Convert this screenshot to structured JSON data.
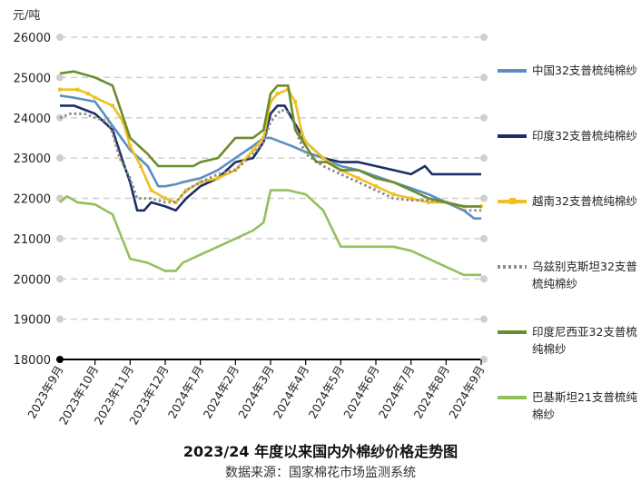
{
  "chart_data": {
    "type": "line",
    "title": "2023/24 年度以来国内外棉纱价格走势图",
    "source": "数据来源：国家棉花市场监测系统",
    "unit": "元/吨",
    "ylim": [
      18000,
      26000
    ],
    "yticks": [
      "18000",
      "19000",
      "20000",
      "21000",
      "22000",
      "23000",
      "24000",
      "25000",
      "26000"
    ],
    "categories": [
      "2023年9月",
      "2023年10月",
      "2023年11月",
      "2023年12月",
      "2024年1月",
      "2024年2月",
      "2024年3月",
      "2024年4月",
      "2024年5月",
      "2024年6月",
      "2024年7月",
      "2024年8月",
      "2024年9月"
    ],
    "grid": true,
    "legend_position": "right",
    "series": [
      {
        "name": "中国32支普梳纯棉纱",
        "color": "#5b8ec4",
        "dash": "solid",
        "values": [
          [
            0,
            24550
          ],
          [
            0.4,
            24500
          ],
          [
            1,
            24400
          ],
          [
            1.5,
            23800
          ],
          [
            2,
            23200
          ],
          [
            2.5,
            22800
          ],
          [
            2.8,
            22300
          ],
          [
            3,
            22300
          ],
          [
            3.3,
            22350
          ],
          [
            3.5,
            22400
          ],
          [
            4,
            22500
          ],
          [
            4.5,
            22700
          ],
          [
            5,
            23000
          ],
          [
            5.5,
            23300
          ],
          [
            5.8,
            23500
          ],
          [
            6,
            23500
          ],
          [
            6.3,
            23400
          ],
          [
            6.6,
            23300
          ],
          [
            7,
            23150
          ],
          [
            7.5,
            23000
          ],
          [
            8,
            22800
          ],
          [
            8.5,
            22700
          ],
          [
            9,
            22550
          ],
          [
            9.5,
            22400
          ],
          [
            10,
            22250
          ],
          [
            10.5,
            22100
          ],
          [
            11,
            21900
          ],
          [
            11.5,
            21700
          ],
          [
            11.8,
            21500
          ],
          [
            12,
            21500
          ]
        ]
      },
      {
        "name": "印度32支普梳纯棉纱",
        "color": "#1a2f66",
        "dash": "solid",
        "values": [
          [
            0,
            24300
          ],
          [
            0.4,
            24300
          ],
          [
            1,
            24100
          ],
          [
            1.5,
            23700
          ],
          [
            1.8,
            22900
          ],
          [
            2,
            22400
          ],
          [
            2.2,
            21700
          ],
          [
            2.4,
            21700
          ],
          [
            2.6,
            21900
          ],
          [
            3,
            21800
          ],
          [
            3.3,
            21700
          ],
          [
            3.6,
            22000
          ],
          [
            4,
            22300
          ],
          [
            4.5,
            22500
          ],
          [
            5,
            22900
          ],
          [
            5.5,
            23000
          ],
          [
            5.8,
            23400
          ],
          [
            6,
            24100
          ],
          [
            6.2,
            24300
          ],
          [
            6.4,
            24300
          ],
          [
            6.6,
            24000
          ],
          [
            6.8,
            23700
          ],
          [
            7,
            23400
          ],
          [
            7.5,
            23000
          ],
          [
            8,
            22900
          ],
          [
            8.5,
            22900
          ],
          [
            9,
            22800
          ],
          [
            9.5,
            22700
          ],
          [
            10,
            22600
          ],
          [
            10.4,
            22800
          ],
          [
            10.6,
            22600
          ],
          [
            11,
            22600
          ],
          [
            11.5,
            22600
          ],
          [
            12,
            22600
          ]
        ]
      },
      {
        "name": "越南32支普梳纯棉纱",
        "color": "#f0c020",
        "dash": "solid",
        "marker": "square",
        "values": [
          [
            0,
            24700
          ],
          [
            0.5,
            24700
          ],
          [
            0.8,
            24600
          ],
          [
            1,
            24500
          ],
          [
            1.5,
            24300
          ],
          [
            1.8,
            23900
          ],
          [
            2,
            23300
          ],
          [
            2.3,
            22800
          ],
          [
            2.6,
            22200
          ],
          [
            3,
            22000
          ],
          [
            3.3,
            21900
          ],
          [
            3.6,
            22200
          ],
          [
            4,
            22400
          ],
          [
            4.5,
            22500
          ],
          [
            5,
            22700
          ],
          [
            5.5,
            23200
          ],
          [
            5.8,
            23500
          ],
          [
            6,
            24400
          ],
          [
            6.2,
            24600
          ],
          [
            6.5,
            24700
          ],
          [
            6.7,
            24400
          ],
          [
            6.9,
            23600
          ],
          [
            7,
            23400
          ],
          [
            7.5,
            23000
          ],
          [
            8,
            22700
          ],
          [
            8.5,
            22500
          ],
          [
            9,
            22300
          ],
          [
            9.5,
            22100
          ],
          [
            10,
            22000
          ],
          [
            10.5,
            21900
          ],
          [
            11,
            21900
          ],
          [
            11.5,
            21800
          ],
          [
            12,
            21800
          ]
        ]
      },
      {
        "name": "乌兹别克斯坦32支普梳纯棉纱",
        "color": "#8a8a8a",
        "dash": "dotted",
        "values": [
          [
            0,
            24000
          ],
          [
            0.3,
            24100
          ],
          [
            0.7,
            24100
          ],
          [
            1,
            24000
          ],
          [
            1.4,
            23900
          ],
          [
            1.7,
            23000
          ],
          [
            2,
            22500
          ],
          [
            2.2,
            22000
          ],
          [
            2.6,
            22000
          ],
          [
            3,
            21900
          ],
          [
            3.3,
            21900
          ],
          [
            3.6,
            22200
          ],
          [
            4,
            22400
          ],
          [
            4.5,
            22600
          ],
          [
            5,
            22700
          ],
          [
            5.5,
            23100
          ],
          [
            5.8,
            23400
          ],
          [
            6,
            23900
          ],
          [
            6.3,
            24200
          ],
          [
            6.6,
            24100
          ],
          [
            6.8,
            23500
          ],
          [
            7,
            23100
          ],
          [
            7.5,
            22800
          ],
          [
            8,
            22600
          ],
          [
            8.5,
            22400
          ],
          [
            9,
            22200
          ],
          [
            9.5,
            22000
          ],
          [
            10,
            21950
          ],
          [
            10.5,
            21950
          ],
          [
            11,
            21900
          ],
          [
            11.5,
            21700
          ],
          [
            12,
            21700
          ]
        ]
      },
      {
        "name": "印度尼西亚32支普梳纯棉纱",
        "color": "#6a8c2c",
        "dash": "solid",
        "values": [
          [
            0,
            25100
          ],
          [
            0.4,
            25150
          ],
          [
            1,
            25000
          ],
          [
            1.5,
            24800
          ],
          [
            2,
            23500
          ],
          [
            2.5,
            23100
          ],
          [
            2.8,
            22800
          ],
          [
            3,
            22800
          ],
          [
            3.5,
            22800
          ],
          [
            3.8,
            22800
          ],
          [
            4,
            22900
          ],
          [
            4.5,
            23000
          ],
          [
            5,
            23500
          ],
          [
            5.5,
            23500
          ],
          [
            5.8,
            23700
          ],
          [
            6,
            24600
          ],
          [
            6.2,
            24800
          ],
          [
            6.5,
            24800
          ],
          [
            6.7,
            23700
          ],
          [
            7,
            23300
          ],
          [
            7.3,
            22900
          ],
          [
            7.6,
            22900
          ],
          [
            8,
            22700
          ],
          [
            8.5,
            22700
          ],
          [
            9,
            22500
          ],
          [
            9.5,
            22400
          ],
          [
            10,
            22200
          ],
          [
            10.5,
            22000
          ],
          [
            11,
            21900
          ],
          [
            11.5,
            21800
          ],
          [
            12,
            21800
          ]
        ]
      },
      {
        "name": "巴基斯坦21支普梳纯棉纱",
        "color": "#92c15c",
        "dash": "solid",
        "values": [
          [
            0,
            21900
          ],
          [
            0.2,
            22050
          ],
          [
            0.5,
            21900
          ],
          [
            1,
            21850
          ],
          [
            1.5,
            21600
          ],
          [
            2,
            20500
          ],
          [
            2.5,
            20400
          ],
          [
            3,
            20200
          ],
          [
            3.3,
            20200
          ],
          [
            3.5,
            20400
          ],
          [
            4,
            20600
          ],
          [
            4.5,
            20800
          ],
          [
            5,
            21000
          ],
          [
            5.5,
            21200
          ],
          [
            5.8,
            21400
          ],
          [
            6,
            22200
          ],
          [
            6.5,
            22200
          ],
          [
            7,
            22100
          ],
          [
            7.5,
            21700
          ],
          [
            8,
            20800
          ],
          [
            8.5,
            20800
          ],
          [
            9,
            20800
          ],
          [
            9.5,
            20800
          ],
          [
            10,
            20700
          ],
          [
            10.5,
            20500
          ],
          [
            11,
            20300
          ],
          [
            11.5,
            20100
          ],
          [
            12,
            20100
          ]
        ]
      }
    ]
  }
}
